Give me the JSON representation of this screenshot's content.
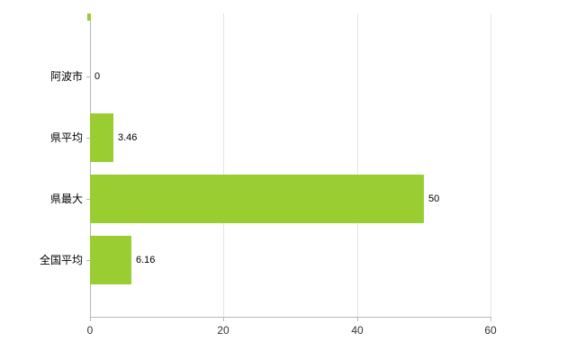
{
  "chart_data": {
    "type": "bar",
    "orientation": "horizontal",
    "title": "",
    "xlabel": "",
    "ylabel": "",
    "categories": [
      "阿波市",
      "県平均",
      "県最大",
      "全国平均"
    ],
    "values": [
      0,
      3.46,
      50,
      6.16
    ],
    "value_labels": [
      "0",
      "3.46",
      "50",
      "6.16"
    ],
    "xlim": [
      0,
      60
    ],
    "x_ticks": [
      0,
      20,
      40,
      60
    ],
    "x_tick_labels": [
      "0",
      "20",
      "40",
      "60"
    ],
    "grid": true,
    "legend": "none",
    "bar_color": "#9acd32",
    "axis_color": "#b8b8b8",
    "grid_color": "#e6e6e6",
    "text_color": "#000000",
    "tick_text_color": "#333333"
  }
}
